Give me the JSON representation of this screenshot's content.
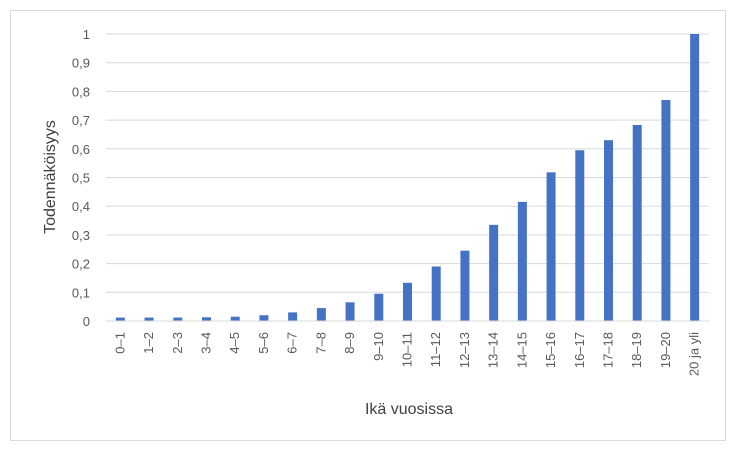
{
  "chart_data": {
    "type": "bar",
    "xlabel": "Ikä vuosissa",
    "ylabel": "Todennäköisyys",
    "ylim": [
      0,
      1
    ],
    "yticks": [
      "0",
      "0,1",
      "0,2",
      "0,3",
      "0,4",
      "0,5",
      "0,6",
      "0,7",
      "0,8",
      "0,9",
      "1"
    ],
    "grid": true,
    "legend": "none",
    "bar_color": "#4472c4",
    "grid_color": "#d9d9d9",
    "categories": [
      "0–1",
      "1–2",
      "2–3",
      "3–4",
      "4–5",
      "5–6",
      "6–7",
      "7–8",
      "8–9",
      "9–10",
      "10–11",
      "11–12",
      "12–13",
      "13–14",
      "14–15",
      "15–16",
      "16–17",
      "17–18",
      "18–19",
      "19–20",
      "20 ja yli"
    ],
    "values": [
      0.012,
      0.012,
      0.012,
      0.013,
      0.015,
      0.02,
      0.03,
      0.045,
      0.065,
      0.095,
      0.133,
      0.19,
      0.245,
      0.335,
      0.415,
      0.518,
      0.595,
      0.63,
      0.683,
      0.77,
      1.0
    ]
  }
}
